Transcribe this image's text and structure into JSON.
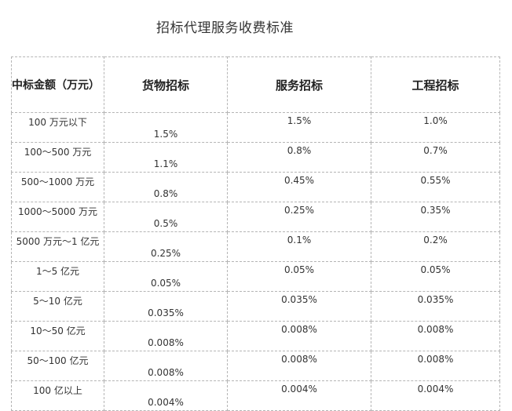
{
  "title": "招标代理服务收费标准",
  "table": {
    "headers": [
      "中标金额（万元）",
      "货物招标",
      "服务招标",
      "工程招标"
    ],
    "rows": [
      {
        "amount": "100 万元以下",
        "goods": "1.5%",
        "service": "1.5%",
        "engineering": "1.0%"
      },
      {
        "amount": "100～500 万元",
        "goods": "1.1%",
        "service": "0.8%",
        "engineering": "0.7%"
      },
      {
        "amount": "500～1000 万元",
        "goods": "0.8%",
        "service": "0.45%",
        "engineering": "0.55%"
      },
      {
        "amount": "1000～5000 万元",
        "goods": "0.5%",
        "service": "0.25%",
        "engineering": "0.35%"
      },
      {
        "amount": "5000 万元～1 亿元",
        "goods": "0.25%",
        "service": "0.1%",
        "engineering": "0.2%"
      },
      {
        "amount": "1～5 亿元",
        "goods": "0.05%",
        "service": "0.05%",
        "engineering": "0.05%"
      },
      {
        "amount": "5～10 亿元",
        "goods": "0.035%",
        "service": "0.035%",
        "engineering": "0.035%"
      },
      {
        "amount": "10～50 亿元",
        "goods": "0.008%",
        "service": "0.008%",
        "engineering": "0.008%"
      },
      {
        "amount": "50～100 亿元",
        "goods": "0.008%",
        "service": "0.008%",
        "engineering": "0.008%"
      },
      {
        "amount": "100 亿以上",
        "goods": "0.004%",
        "service": "0.004%",
        "engineering": "0.004%"
      }
    ]
  },
  "colors": {
    "border": "#b5b5b5",
    "text": "#333333"
  }
}
